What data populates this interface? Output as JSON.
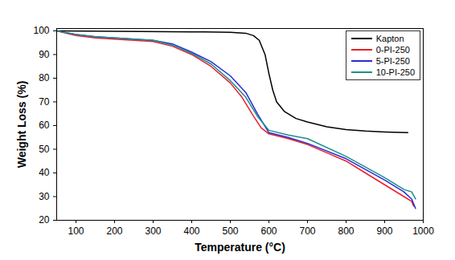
{
  "chart_data": {
    "type": "line",
    "x_label": "Temperature (°C)",
    "y_label": "Weight Loss (%)",
    "xlim": [
      50,
      1000
    ],
    "ylim": [
      20,
      101
    ],
    "xticks": [
      100,
      200,
      300,
      400,
      500,
      600,
      700,
      800,
      900,
      1000
    ],
    "yticks": [
      20,
      30,
      40,
      50,
      60,
      70,
      80,
      90,
      100
    ],
    "grid": false,
    "legend": "upper right",
    "series": [
      {
        "name": "Kapton",
        "color": "#000000",
        "x": [
          50,
          200,
          400,
          500,
          540,
          560,
          575,
          590,
          600,
          610,
          620,
          640,
          670,
          700,
          750,
          800,
          850,
          900,
          960
        ],
        "values": [
          100,
          99.8,
          99.6,
          99.4,
          99,
          98,
          96,
          90,
          82,
          75,
          70,
          66,
          63,
          61.5,
          59.5,
          58.3,
          57.7,
          57.3,
          57
        ]
      },
      {
        "name": "0-PI-250",
        "color": "#e8202a",
        "x": [
          50,
          100,
          150,
          200,
          300,
          350,
          400,
          450,
          500,
          530,
          560,
          580,
          600,
          650,
          700,
          750,
          800,
          850,
          900,
          950,
          970,
          975
        ],
        "values": [
          100,
          98,
          97,
          96.5,
          95.5,
          93.5,
          90,
          85,
          78,
          72,
          64,
          59,
          56.5,
          54.5,
          52,
          48.5,
          45,
          40,
          35,
          30,
          28,
          26
        ]
      },
      {
        "name": "5-PI-250",
        "color": "#2a2ad8",
        "x": [
          50,
          100,
          150,
          200,
          300,
          350,
          400,
          450,
          500,
          540,
          570,
          600,
          650,
          700,
          800,
          900,
          950,
          970,
          980
        ],
        "values": [
          100,
          98.5,
          97.5,
          97,
          96,
          94.5,
          91,
          87,
          81,
          74,
          65,
          57,
          55,
          52.5,
          46,
          37,
          32,
          29,
          25
        ]
      },
      {
        "name": "10-PI-250",
        "color": "#1a8f8a",
        "x": [
          50,
          100,
          150,
          200,
          300,
          350,
          400,
          450,
          500,
          540,
          570,
          600,
          650,
          700,
          800,
          900,
          950,
          970,
          980
        ],
        "values": [
          100,
          98.5,
          97.5,
          97,
          96,
          94,
          90.5,
          86,
          79,
          72,
          64,
          58,
          56,
          54.5,
          47,
          38,
          33,
          32,
          29
        ]
      }
    ]
  }
}
